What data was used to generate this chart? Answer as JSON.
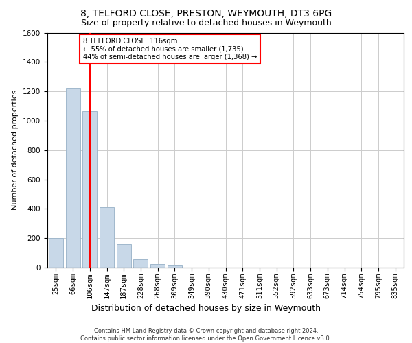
{
  "title": "8, TELFORD CLOSE, PRESTON, WEYMOUTH, DT3 6PG",
  "subtitle": "Size of property relative to detached houses in Weymouth",
  "xlabel": "Distribution of detached houses by size in Weymouth",
  "ylabel": "Number of detached properties",
  "categories": [
    "25sqm",
    "66sqm",
    "106sqm",
    "147sqm",
    "187sqm",
    "228sqm",
    "268sqm",
    "309sqm",
    "349sqm",
    "390sqm",
    "430sqm",
    "471sqm",
    "511sqm",
    "552sqm",
    "592sqm",
    "633sqm",
    "673sqm",
    "714sqm",
    "754sqm",
    "795sqm",
    "835sqm"
  ],
  "values": [
    200,
    1220,
    1065,
    410,
    160,
    55,
    22,
    14,
    0,
    0,
    0,
    0,
    0,
    0,
    0,
    0,
    0,
    0,
    0,
    0,
    0
  ],
  "bar_color": "#c8d8e8",
  "bar_edge_color": "#a0b8cc",
  "red_line_x": 2,
  "annotation_text": "8 TELFORD CLOSE: 116sqm\n← 55% of detached houses are smaller (1,735)\n44% of semi-detached houses are larger (1,368) →",
  "annotation_box_color": "white",
  "annotation_box_edge_color": "red",
  "red_line_color": "red",
  "ylim": [
    0,
    1600
  ],
  "yticks": [
    0,
    200,
    400,
    600,
    800,
    1000,
    1200,
    1400,
    1600
  ],
  "grid_color": "#cccccc",
  "background_color": "white",
  "footer": "Contains HM Land Registry data © Crown copyright and database right 2024.\nContains public sector information licensed under the Open Government Licence v3.0.",
  "title_fontsize": 10,
  "subtitle_fontsize": 9,
  "xlabel_fontsize": 9,
  "ylabel_fontsize": 8,
  "tick_fontsize": 7.5,
  "footer_fontsize": 6
}
